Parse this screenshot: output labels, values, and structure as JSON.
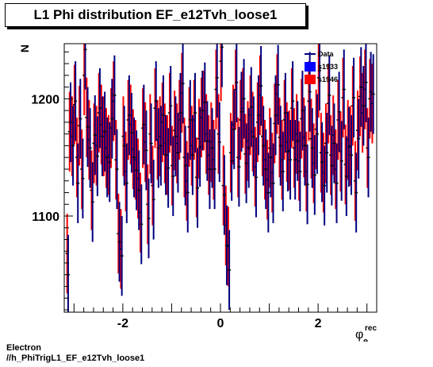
{
  "title": "L1 Phi distribution EF_e12Tvh_loose1",
  "footer": {
    "line1": "Electron",
    "line2": "//h_PhiTrigL1_EF_e12Tvh_loose1"
  },
  "chart_data": {
    "type": "scatter",
    "title": "L1 Phi distribution EF_e12Tvh_loose1",
    "ylabel": "N",
    "xlabel_main": "φ",
    "xlabel_sup": "rec",
    "xlabel_sub": "e",
    "xlim": [
      -3.2,
      3.2
    ],
    "ylim": [
      1018,
      1247
    ],
    "xticks": [
      -2,
      0,
      2
    ],
    "xtick_labels": [
      "-2",
      "0",
      "2"
    ],
    "yticks": [
      1100,
      1200
    ],
    "ytick_labels": [
      "1100",
      "1200"
    ],
    "legend_position": "top-right",
    "colors": {
      "Data": "#000080",
      "s1933": "#0000ff",
      "s1946": "#ff0000"
    },
    "legend": [
      {
        "label": "Data",
        "marker": "line",
        "color": "#000080"
      },
      {
        "label": "s1933",
        "marker": "box",
        "color": "#0000ff"
      },
      {
        "label": "s1946",
        "marker": "box",
        "color": "#ff0000"
      }
    ],
    "err": 34,
    "series": [
      {
        "name": "s1946",
        "color": "#ff0000",
        "x": [
          -3.14,
          -3.09,
          -3.04,
          -2.99,
          -2.94,
          -2.89,
          -2.84,
          -2.79,
          -2.74,
          -2.69,
          -2.64,
          -2.59,
          -2.54,
          -2.49,
          -2.44,
          -2.39,
          -2.34,
          -2.29,
          -2.24,
          -2.19,
          -2.14,
          -2.09,
          -2.04,
          -1.99,
          -1.94,
          -1.89,
          -1.84,
          -1.79,
          -1.74,
          -1.69,
          -1.64,
          -1.59,
          -1.54,
          -1.49,
          -1.44,
          -1.39,
          -1.34,
          -1.29,
          -1.24,
          -1.19,
          -1.14,
          -1.09,
          -1.04,
          -0.99,
          -0.94,
          -0.89,
          -0.84,
          -0.79,
          -0.74,
          -0.69,
          -0.64,
          -0.59,
          -0.54,
          -0.49,
          -0.44,
          -0.39,
          -0.34,
          -0.29,
          -0.24,
          -0.19,
          -0.14,
          -0.09,
          -0.04,
          0.01,
          0.06,
          0.11,
          0.16,
          0.21,
          0.26,
          0.31,
          0.36,
          0.41,
          0.46,
          0.51,
          0.56,
          0.61,
          0.66,
          0.71,
          0.76,
          0.81,
          0.86,
          0.91,
          0.96,
          1.01,
          1.06,
          1.11,
          1.16,
          1.21,
          1.26,
          1.31,
          1.36,
          1.41,
          1.46,
          1.51,
          1.56,
          1.61,
          1.66,
          1.71,
          1.76,
          1.81,
          1.86,
          1.91,
          1.96,
          2.01,
          2.06,
          2.11,
          2.16,
          2.21,
          2.26,
          2.31,
          2.36,
          2.41,
          2.46,
          2.51,
          2.56,
          2.61,
          2.66,
          2.71,
          2.76,
          2.81,
          2.86,
          2.91,
          2.96,
          3.01,
          3.06,
          3.11
        ],
        "values": [
          1068,
          1172,
          1168,
          1195,
          1150,
          1177,
          1140,
          1220,
          1184,
          1165,
          1122,
          1162,
          1160,
          1188,
          1178,
          1168,
          1158,
          1152,
          1175,
          1198,
          1148,
          1085,
          1072,
          1168,
          1138,
          1182,
          1178,
          1157,
          1148,
          1132,
          1103,
          1175,
          1163,
          1110,
          1170,
          1126,
          1192,
          1165,
          1168,
          1180,
          1162,
          1152,
          1188,
          1143,
          1173,
          1162,
          1182,
          1205,
          1150,
          1130,
          1176,
          1160,
          1182,
          1133,
          1166,
          1184,
          1190,
          1170,
          1152,
          1163,
          1148,
          1208,
          1170,
          1232,
          1126,
          1092,
          1074,
          1154,
          1178,
          1208,
          1150,
          1182,
          1192,
          1153,
          1164,
          1186,
          1172,
          1142,
          1180,
          1203,
          1168,
          1148,
          1131,
          1158,
          1137,
          1179,
          1204,
          1167,
          1148,
          1182,
          1163,
          1156,
          1192,
          1158,
          1170,
          1147,
          1183,
          1167,
          1138,
          1198,
          1166,
          1145,
          1174,
          1218,
          1154,
          1137,
          1162,
          1196,
          1152,
          1169,
          1140,
          1182,
          1155,
          1201,
          1144,
          1165,
          1160,
          1194,
          1130,
          1173,
          1202,
          1188,
          1208,
          1158,
          1200,
          1196
        ]
      },
      {
        "name": "Data",
        "color": "#000080",
        "x": [
          -3.12,
          -3.07,
          -3.02,
          -2.97,
          -2.92,
          -2.87,
          -2.82,
          -2.77,
          -2.72,
          -2.67,
          -2.62,
          -2.57,
          -2.52,
          -2.47,
          -2.42,
          -2.37,
          -2.32,
          -2.27,
          -2.22,
          -2.17,
          -2.12,
          -2.07,
          -2.02,
          -1.97,
          -1.92,
          -1.87,
          -1.82,
          -1.77,
          -1.72,
          -1.67,
          -1.62,
          -1.57,
          -1.52,
          -1.47,
          -1.42,
          -1.37,
          -1.32,
          -1.27,
          -1.22,
          -1.17,
          -1.12,
          -1.07,
          -1.02,
          -0.97,
          -0.92,
          -0.87,
          -0.82,
          -0.77,
          -0.72,
          -0.67,
          -0.62,
          -0.57,
          -0.52,
          -0.47,
          -0.42,
          -0.37,
          -0.32,
          -0.27,
          -0.22,
          -0.17,
          -0.12,
          -0.07,
          -0.02,
          0.03,
          0.08,
          0.13,
          0.18,
          0.23,
          0.28,
          0.33,
          0.38,
          0.43,
          0.48,
          0.53,
          0.58,
          0.63,
          0.68,
          0.73,
          0.78,
          0.83,
          0.88,
          0.93,
          0.98,
          1.03,
          1.08,
          1.13,
          1.18,
          1.23,
          1.28,
          1.33,
          1.38,
          1.43,
          1.48,
          1.53,
          1.58,
          1.63,
          1.68,
          1.73,
          1.78,
          1.83,
          1.88,
          1.93,
          1.98,
          2.03,
          2.08,
          2.13,
          2.18,
          2.23,
          2.28,
          2.33,
          2.38,
          2.43,
          2.48,
          2.53,
          2.58,
          2.63,
          2.68,
          2.73,
          2.78,
          2.83,
          2.88,
          2.93,
          2.98,
          3.03,
          3.08,
          3.13
        ],
        "values": [
          1050,
          1180,
          1160,
          1198,
          1128,
          1183,
          1132,
          1242,
          1176,
          1158,
          1112,
          1169,
          1151,
          1192,
          1168,
          1172,
          1150,
          1146,
          1183,
          1203,
          1140,
          1078,
          1066,
          1160,
          1128,
          1186,
          1171,
          1150,
          1139,
          1122,
          1093,
          1178,
          1156,
          1098,
          1162,
          1114,
          1198,
          1158,
          1160,
          1186,
          1152,
          1141,
          1194,
          1134,
          1168,
          1154,
          1188,
          1213,
          1143,
          1120,
          1182,
          1152,
          1188,
          1124,
          1159,
          1190,
          1197,
          1164,
          1140,
          1158,
          1140,
          1218,
          1163,
          1244,
          1118,
          1075,
          1054,
          1147,
          1174,
          1214,
          1142,
          1189,
          1200,
          1145,
          1158,
          1193,
          1168,
          1133,
          1186,
          1211,
          1160,
          1140,
          1120,
          1150,
          1128,
          1186,
          1212,
          1160,
          1138,
          1188,
          1155,
          1148,
          1198,
          1148,
          1164,
          1138,
          1190,
          1160,
          1127,
          1206,
          1158,
          1135,
          1170,
          1224,
          1146,
          1126,
          1154,
          1203,
          1143,
          1162,
          1128,
          1189,
          1147,
          1208,
          1134,
          1159,
          1152,
          1201,
          1120,
          1166,
          1210,
          1194,
          1214,
          1150,
          1206,
          1204
        ]
      }
    ]
  }
}
